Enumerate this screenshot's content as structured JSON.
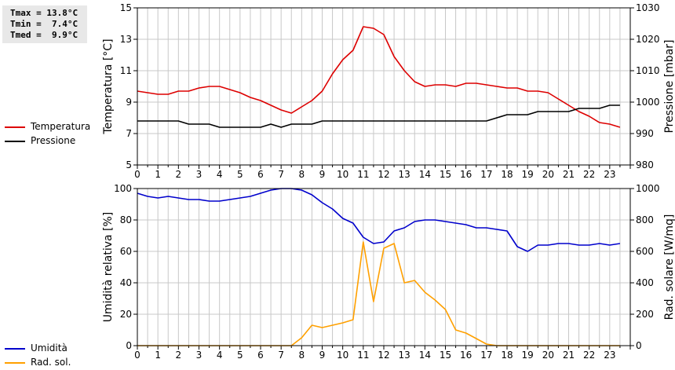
{
  "stats": {
    "tmax": "Tmax = 13.8°C",
    "tmin": "Tmin =  7.4°C",
    "tmed": "Tmed =  9.9°C"
  },
  "colors": {
    "temperature": "#dd0000",
    "pressure": "#000000",
    "humidity": "#0000cc",
    "radiation": "#ffa000",
    "grid": "#c8c8c8"
  },
  "chart_data": [
    {
      "type": "line",
      "title": "",
      "xlabel": "",
      "x_ticks": [
        "0",
        "1",
        "2",
        "3",
        "4",
        "5",
        "6",
        "7",
        "8",
        "9",
        "10",
        "11",
        "12",
        "13",
        "14",
        "15",
        "16",
        "17",
        "18",
        "19",
        "20",
        "21",
        "22",
        "23"
      ],
      "xlim": [
        0,
        24
      ],
      "y_left": {
        "label": "Temperatura [°C]",
        "lim": [
          5,
          15
        ],
        "ticks": [
          "5",
          "7",
          "9",
          "11",
          "13",
          "15"
        ]
      },
      "y_right": {
        "label": "Pressione [mbar]",
        "lim": [
          980,
          1030
        ],
        "ticks": [
          "980",
          "990",
          "1000",
          "1010",
          "1020",
          "1030"
        ]
      },
      "grid": true,
      "legend_position": "left",
      "series": [
        {
          "name": "Temperatura",
          "axis": "left",
          "color_key": "temperature",
          "points": [
            [
              0,
              9.7
            ],
            [
              0.5,
              9.6
            ],
            [
              1,
              9.5
            ],
            [
              1.5,
              9.5
            ],
            [
              2,
              9.7
            ],
            [
              2.5,
              9.7
            ],
            [
              3,
              9.9
            ],
            [
              3.5,
              10.0
            ],
            [
              4,
              10.0
            ],
            [
              4.5,
              9.8
            ],
            [
              5,
              9.6
            ],
            [
              5.5,
              9.3
            ],
            [
              6,
              9.1
            ],
            [
              6.5,
              8.8
            ],
            [
              7,
              8.5
            ],
            [
              7.5,
              8.3
            ],
            [
              8,
              8.7
            ],
            [
              8.5,
              9.1
            ],
            [
              9,
              9.7
            ],
            [
              9.5,
              10.8
            ],
            [
              10,
              11.7
            ],
            [
              10.5,
              12.3
            ],
            [
              11,
              13.8
            ],
            [
              11.5,
              13.7
            ],
            [
              12,
              13.3
            ],
            [
              12.5,
              11.9
            ],
            [
              13,
              11.0
            ],
            [
              13.5,
              10.3
            ],
            [
              14,
              10.0
            ],
            [
              14.5,
              10.1
            ],
            [
              15,
              10.1
            ],
            [
              15.5,
              10.0
            ],
            [
              16,
              10.2
            ],
            [
              16.5,
              10.2
            ],
            [
              17,
              10.1
            ],
            [
              17.5,
              10.0
            ],
            [
              18,
              9.9
            ],
            [
              18.5,
              9.9
            ],
            [
              19,
              9.7
            ],
            [
              19.5,
              9.7
            ],
            [
              20,
              9.6
            ],
            [
              20.5,
              9.2
            ],
            [
              21,
              8.8
            ],
            [
              21.5,
              8.4
            ],
            [
              22,
              8.1
            ],
            [
              22.5,
              7.7
            ],
            [
              23,
              7.6
            ],
            [
              23.5,
              7.4
            ]
          ]
        },
        {
          "name": "Pressione",
          "axis": "right",
          "color_key": "pressure",
          "points": [
            [
              0,
              994
            ],
            [
              0.5,
              994
            ],
            [
              1,
              994
            ],
            [
              1.5,
              994
            ],
            [
              2,
              994
            ],
            [
              2.5,
              993
            ],
            [
              3,
              993
            ],
            [
              3.5,
              993
            ],
            [
              4,
              992
            ],
            [
              4.5,
              992
            ],
            [
              5,
              992
            ],
            [
              5.5,
              992
            ],
            [
              6,
              992
            ],
            [
              6.5,
              993
            ],
            [
              7,
              992
            ],
            [
              7.5,
              993
            ],
            [
              8,
              993
            ],
            [
              8.5,
              993
            ],
            [
              9,
              994
            ],
            [
              9.5,
              994
            ],
            [
              10,
              994
            ],
            [
              10.5,
              994
            ],
            [
              11,
              994
            ],
            [
              11.5,
              994
            ],
            [
              12,
              994
            ],
            [
              12.5,
              994
            ],
            [
              13,
              994
            ],
            [
              13.5,
              994
            ],
            [
              14,
              994
            ],
            [
              14.5,
              994
            ],
            [
              15,
              994
            ],
            [
              15.5,
              994
            ],
            [
              16,
              994
            ],
            [
              16.5,
              994
            ],
            [
              17,
              994
            ],
            [
              17.5,
              995
            ],
            [
              18,
              996
            ],
            [
              18.5,
              996
            ],
            [
              19,
              996
            ],
            [
              19.5,
              997
            ],
            [
              20,
              997
            ],
            [
              20.5,
              997
            ],
            [
              21,
              997
            ],
            [
              21.5,
              998
            ],
            [
              22,
              998
            ],
            [
              22.5,
              998
            ],
            [
              23,
              999
            ],
            [
              23.5,
              999
            ]
          ]
        }
      ]
    },
    {
      "type": "line",
      "title": "",
      "xlabel": "",
      "x_ticks": [
        "0",
        "1",
        "2",
        "3",
        "4",
        "5",
        "6",
        "7",
        "8",
        "9",
        "10",
        "11",
        "12",
        "13",
        "14",
        "15",
        "16",
        "17",
        "18",
        "19",
        "20",
        "21",
        "22",
        "23"
      ],
      "xlim": [
        0,
        24
      ],
      "y_left": {
        "label": "Umidità relativa [%]",
        "lim": [
          0,
          100
        ],
        "ticks": [
          "0",
          "20",
          "40",
          "60",
          "80",
          "100"
        ]
      },
      "y_right": {
        "label": "Rad. solare [W/mq]",
        "lim": [
          0,
          1000
        ],
        "ticks": [
          "0",
          "200",
          "400",
          "600",
          "800",
          "1000"
        ]
      },
      "grid": true,
      "legend_position": "left",
      "series": [
        {
          "name": "Umidità",
          "axis": "left",
          "color_key": "humidity",
          "points": [
            [
              0,
              97
            ],
            [
              0.5,
              95
            ],
            [
              1,
              94
            ],
            [
              1.5,
              95
            ],
            [
              2,
              94
            ],
            [
              2.5,
              93
            ],
            [
              3,
              93
            ],
            [
              3.5,
              92
            ],
            [
              4,
              92
            ],
            [
              4.5,
              93
            ],
            [
              5,
              94
            ],
            [
              5.5,
              95
            ],
            [
              6,
              97
            ],
            [
              6.5,
              99
            ],
            [
              7,
              100
            ],
            [
              7.5,
              100
            ],
            [
              8,
              99
            ],
            [
              8.5,
              96
            ],
            [
              9,
              91
            ],
            [
              9.5,
              87
            ],
            [
              10,
              81
            ],
            [
              10.5,
              78
            ],
            [
              11,
              69
            ],
            [
              11.5,
              65
            ],
            [
              12,
              66
            ],
            [
              12.5,
              73
            ],
            [
              13,
              75
            ],
            [
              13.5,
              79
            ],
            [
              14,
              80
            ],
            [
              14.5,
              80
            ],
            [
              15,
              79
            ],
            [
              15.5,
              78
            ],
            [
              16,
              77
            ],
            [
              16.5,
              75
            ],
            [
              17,
              75
            ],
            [
              17.5,
              74
            ],
            [
              18,
              73
            ],
            [
              18.5,
              63
            ],
            [
              19,
              60
            ],
            [
              19.5,
              64
            ],
            [
              20,
              64
            ],
            [
              20.5,
              65
            ],
            [
              21,
              65
            ],
            [
              21.5,
              64
            ],
            [
              22,
              64
            ],
            [
              22.5,
              65
            ],
            [
              23,
              64
            ],
            [
              23.5,
              65
            ]
          ]
        },
        {
          "name": "Rad. sol.",
          "axis": "right",
          "color_key": "radiation",
          "points": [
            [
              0,
              0
            ],
            [
              0.5,
              0
            ],
            [
              1,
              0
            ],
            [
              1.5,
              0
            ],
            [
              2,
              0
            ],
            [
              2.5,
              0
            ],
            [
              3,
              0
            ],
            [
              3.5,
              0
            ],
            [
              4,
              0
            ],
            [
              4.5,
              0
            ],
            [
              5,
              0
            ],
            [
              5.5,
              0
            ],
            [
              6,
              0
            ],
            [
              6.5,
              0
            ],
            [
              7,
              0
            ],
            [
              7.5,
              0
            ],
            [
              8,
              50
            ],
            [
              8.5,
              130
            ],
            [
              9,
              115
            ],
            [
              9.5,
              130
            ],
            [
              10,
              145
            ],
            [
              10.5,
              165
            ],
            [
              11,
              660
            ],
            [
              11.5,
              280
            ],
            [
              12,
              620
            ],
            [
              12.5,
              650
            ],
            [
              13,
              400
            ],
            [
              13.5,
              415
            ],
            [
              14,
              340
            ],
            [
              14.5,
              290
            ],
            [
              15,
              230
            ],
            [
              15.5,
              100
            ],
            [
              16,
              80
            ],
            [
              16.5,
              45
            ],
            [
              17,
              10
            ],
            [
              17.5,
              0
            ],
            [
              18,
              0
            ],
            [
              18.5,
              0
            ],
            [
              19,
              0
            ],
            [
              19.5,
              0
            ],
            [
              20,
              0
            ],
            [
              20.5,
              0
            ],
            [
              21,
              0
            ],
            [
              21.5,
              0
            ],
            [
              22,
              0
            ],
            [
              22.5,
              0
            ],
            [
              23,
              0
            ],
            [
              23.5,
              0
            ]
          ]
        }
      ]
    }
  ]
}
